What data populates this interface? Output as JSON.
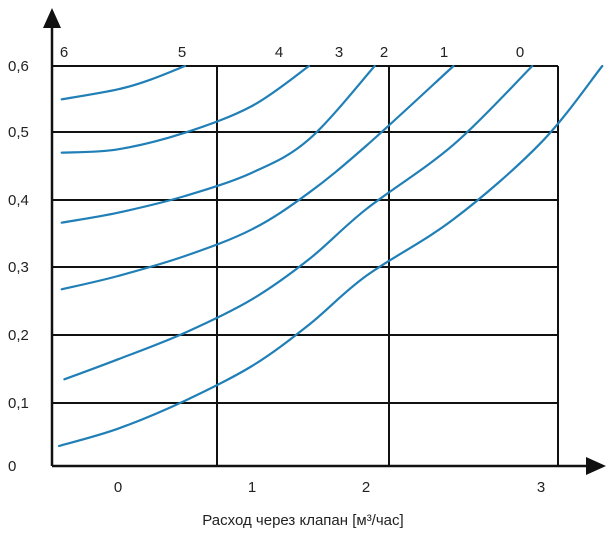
{
  "chart_data": {
    "type": "line",
    "title": "",
    "xlabel": "Расход через клапан [м³/час]",
    "ylabel": "",
    "x_ticks": [
      "0",
      "1",
      "2",
      "3"
    ],
    "y_ticks": [
      "0",
      "0,1",
      "0,2",
      "0,3",
      "0,4",
      "0,5",
      "0,6"
    ],
    "xlim": [
      -0.45,
      3.45
    ],
    "ylim": [
      -0.01,
      0.6
    ],
    "grid": true,
    "line_color": "#1f7fb6",
    "series": [
      {
        "name": "0",
        "x": [
          -0.44,
          0.0,
          0.5,
          1.0,
          1.5,
          2.0,
          2.5,
          3.0,
          3.35
        ],
        "y": [
          0.03,
          0.056,
          0.098,
          0.15,
          0.212,
          0.285,
          0.37,
          0.485,
          0.6
        ]
      },
      {
        "name": "1",
        "x": [
          -0.4,
          0.0,
          0.5,
          1.0,
          1.5,
          2.0,
          2.5,
          2.95
        ],
        "y": [
          0.13,
          0.16,
          0.2,
          0.25,
          0.31,
          0.385,
          0.482,
          0.6
        ]
      },
      {
        "name": "2",
        "x": [
          -0.42,
          0.0,
          0.5,
          1.0,
          1.5,
          2.0,
          2.5
        ],
        "y": [
          0.265,
          0.285,
          0.315,
          0.355,
          0.41,
          0.48,
          0.6
        ]
      },
      {
        "name": "3",
        "x": [
          -0.42,
          0.0,
          0.5,
          1.0,
          1.5,
          2.05
        ],
        "y": [
          0.365,
          0.38,
          0.405,
          0.44,
          0.49,
          0.6
        ]
      },
      {
        "name": "4",
        "x": [
          -0.42,
          0.0,
          0.5,
          1.0,
          1.5
        ],
        "y": [
          0.47,
          0.475,
          0.5,
          0.54,
          0.6
        ]
      },
      {
        "name": "5",
        "x": [
          -0.42,
          0.0,
          0.25,
          0.5
        ],
        "y": [
          0.55,
          0.565,
          0.58,
          0.6
        ]
      },
      {
        "name": "6",
        "x": [],
        "y": []
      }
    ]
  }
}
